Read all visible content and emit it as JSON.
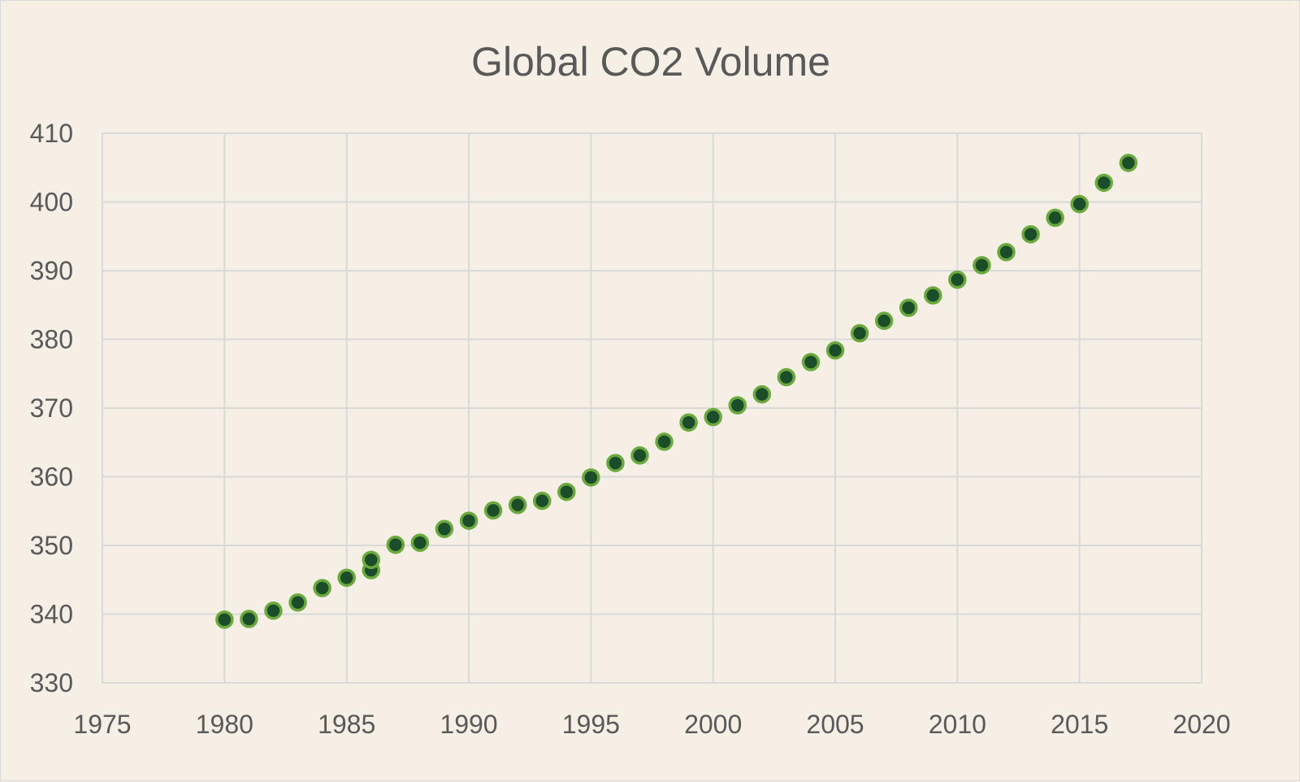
{
  "chart_data": {
    "type": "scatter",
    "title": "Global CO2 Volume",
    "xlabel": "",
    "ylabel": "",
    "xlim": [
      1975,
      2020
    ],
    "ylim": [
      330,
      410
    ],
    "xticks": [
      1975,
      1980,
      1985,
      1990,
      1995,
      2000,
      2005,
      2010,
      2015,
      2020
    ],
    "yticks": [
      330,
      340,
      350,
      360,
      370,
      380,
      390,
      400,
      410
    ],
    "grid": true,
    "legend": "none",
    "marker_fill": "#1b4d2b",
    "marker_edge": "#6aaa3c",
    "points": [
      [
        1980,
        339.2
      ],
      [
        1981,
        339.3
      ],
      [
        1982,
        340.5
      ],
      [
        1983,
        341.7
      ],
      [
        1984,
        343.8
      ],
      [
        1985,
        345.3
      ],
      [
        1986,
        346.4
      ],
      [
        1986,
        347.9
      ],
      [
        1987,
        350.1
      ],
      [
        1988,
        350.4
      ],
      [
        1989,
        352.4
      ],
      [
        1990,
        353.6
      ],
      [
        1991,
        355.1
      ],
      [
        1992,
        355.9
      ],
      [
        1993,
        356.5
      ],
      [
        1994,
        357.8
      ],
      [
        1995,
        359.9
      ],
      [
        1996,
        362.0
      ],
      [
        1997,
        363.1
      ],
      [
        1998,
        365.1
      ],
      [
        1999,
        367.9
      ],
      [
        2000,
        368.7
      ],
      [
        2001,
        370.4
      ],
      [
        2002,
        372.0
      ],
      [
        2003,
        374.5
      ],
      [
        2004,
        376.7
      ],
      [
        2005,
        378.4
      ],
      [
        2006,
        380.9
      ],
      [
        2007,
        382.7
      ],
      [
        2008,
        384.6
      ],
      [
        2009,
        386.4
      ],
      [
        2010,
        388.7
      ],
      [
        2011,
        390.8
      ],
      [
        2012,
        392.7
      ],
      [
        2013,
        395.3
      ],
      [
        2014,
        397.7
      ],
      [
        2015,
        399.7
      ],
      [
        2016,
        402.8
      ],
      [
        2017,
        405.7
      ]
    ]
  }
}
